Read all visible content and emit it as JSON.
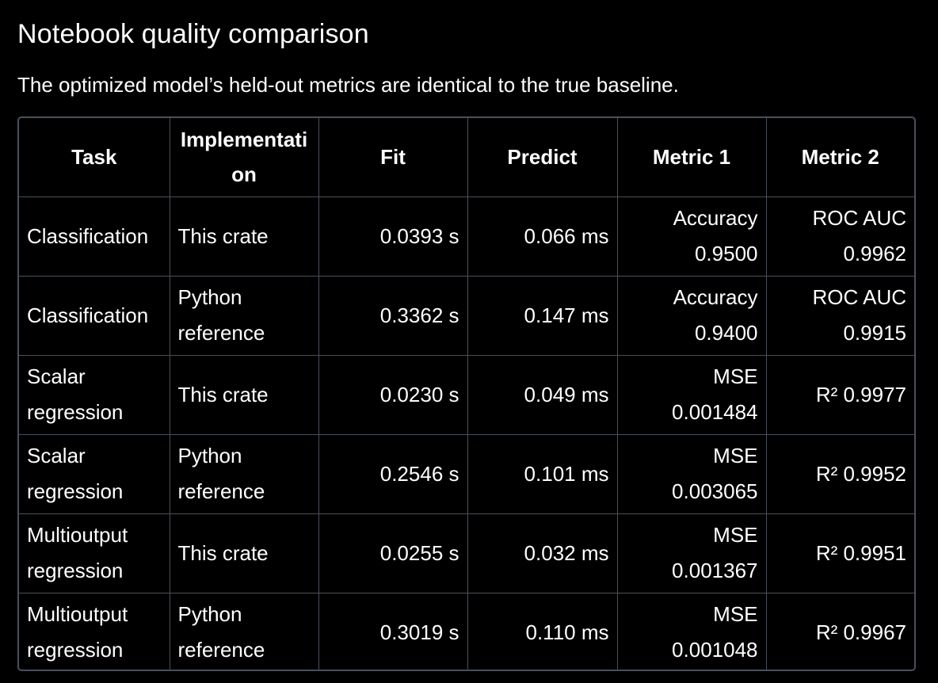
{
  "heading": "Notebook quality comparison",
  "subtitle": "The optimized model’s held-out metrics are identical to the true baseline.",
  "table": {
    "headers": [
      "Task",
      "Implementation",
      "Fit",
      "Predict",
      "Metric 1",
      "Metric 2"
    ],
    "rows": [
      {
        "task": [
          "Classification"
        ],
        "impl": [
          "This crate"
        ],
        "fit": "0.0393 s",
        "predict": "0.066 ms",
        "metric1": [
          "Accuracy",
          "0.9500"
        ],
        "metric2": [
          "ROC AUC",
          "0.9962"
        ]
      },
      {
        "task": [
          "Classification"
        ],
        "impl": [
          "Python",
          "reference"
        ],
        "fit": "0.3362 s",
        "predict": "0.147 ms",
        "metric1": [
          "Accuracy",
          "0.9400"
        ],
        "metric2": [
          "ROC AUC",
          "0.9915"
        ]
      },
      {
        "task": [
          "Scalar",
          "regression"
        ],
        "impl": [
          "This crate"
        ],
        "fit": "0.0230 s",
        "predict": "0.049 ms",
        "metric1": [
          "MSE",
          "0.001484"
        ],
        "metric2": [
          "R² 0.9977"
        ]
      },
      {
        "task": [
          "Scalar",
          "regression"
        ],
        "impl": [
          "Python",
          "reference"
        ],
        "fit": "0.2546 s",
        "predict": "0.101 ms",
        "metric1": [
          "MSE",
          "0.003065"
        ],
        "metric2": [
          "R² 0.9952"
        ]
      },
      {
        "task": [
          "Multioutput",
          "regression"
        ],
        "impl": [
          "This crate"
        ],
        "fit": "0.0255 s",
        "predict": "0.032 ms",
        "metric1": [
          "MSE",
          "0.001367"
        ],
        "metric2": [
          "R² 0.9951"
        ]
      },
      {
        "task": [
          "Multioutput",
          "regression"
        ],
        "impl": [
          "Python",
          "reference"
        ],
        "fit": "0.3019 s",
        "predict": "0.110 ms",
        "metric1": [
          "MSE",
          "0.001048"
        ],
        "metric2": [
          "R² 0.9967"
        ]
      }
    ]
  }
}
